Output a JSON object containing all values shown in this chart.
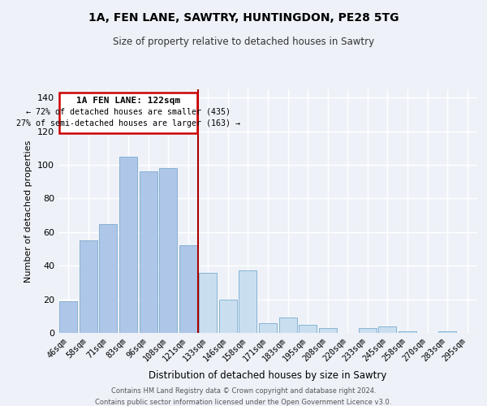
{
  "title": "1A, FEN LANE, SAWTRY, HUNTINGDON, PE28 5TG",
  "subtitle": "Size of property relative to detached houses in Sawtry",
  "xlabel": "Distribution of detached houses by size in Sawtry",
  "ylabel": "Number of detached properties",
  "categories": [
    "46sqm",
    "58sqm",
    "71sqm",
    "83sqm",
    "96sqm",
    "108sqm",
    "121sqm",
    "133sqm",
    "146sqm",
    "158sqm",
    "171sqm",
    "183sqm",
    "195sqm",
    "208sqm",
    "220sqm",
    "233sqm",
    "245sqm",
    "258sqm",
    "270sqm",
    "283sqm",
    "295sqm"
  ],
  "values": [
    19,
    55,
    65,
    105,
    96,
    98,
    52,
    36,
    20,
    37,
    6,
    9,
    5,
    3,
    0,
    3,
    4,
    1,
    0,
    1,
    0
  ],
  "bar_color_left": "#aec6e8",
  "bar_color_right": "#c9dff0",
  "property_line_index": 6,
  "annotation_title": "1A FEN LANE: 122sqm",
  "annotation_line1": "← 72% of detached houses are smaller (435)",
  "annotation_line2": "27% of semi-detached houses are larger (163) →",
  "ylim": [
    0,
    145
  ],
  "yticks": [
    0,
    20,
    40,
    60,
    80,
    100,
    120,
    140
  ],
  "footer1": "Contains HM Land Registry data © Crown copyright and database right 2024.",
  "footer2": "Contains public sector information licensed under the Open Government Licence v3.0.",
  "background_color": "#eef2f8",
  "grid_color": "#ffffff",
  "bar_edge_color": "#7aaace",
  "title_fontsize": 10,
  "subtitle_fontsize": 8.5
}
